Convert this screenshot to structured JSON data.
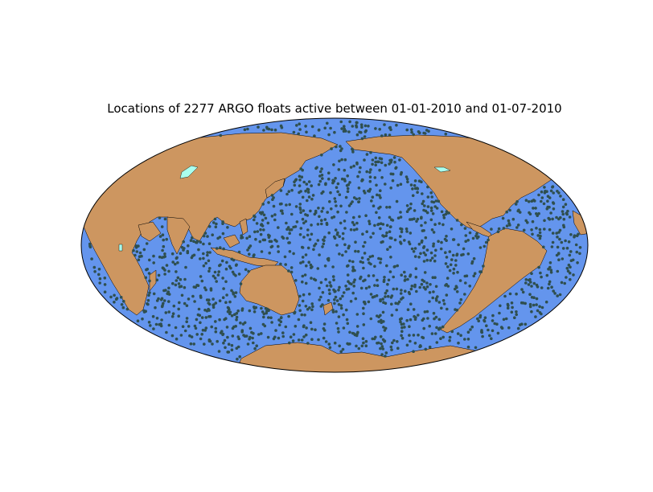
{
  "map": {
    "title": "Locations of 2277 ARGO floats active between 01-01-2010 and 01-07-2010",
    "projection": "hammer",
    "central_longitude": 180,
    "colors": {
      "ocean": "#6495ED",
      "land": "#CD9660",
      "lakes": "#AAFFEE",
      "coastline": "#000000",
      "floats": "#2F4F4F"
    },
    "float_count": 2277
  }
}
